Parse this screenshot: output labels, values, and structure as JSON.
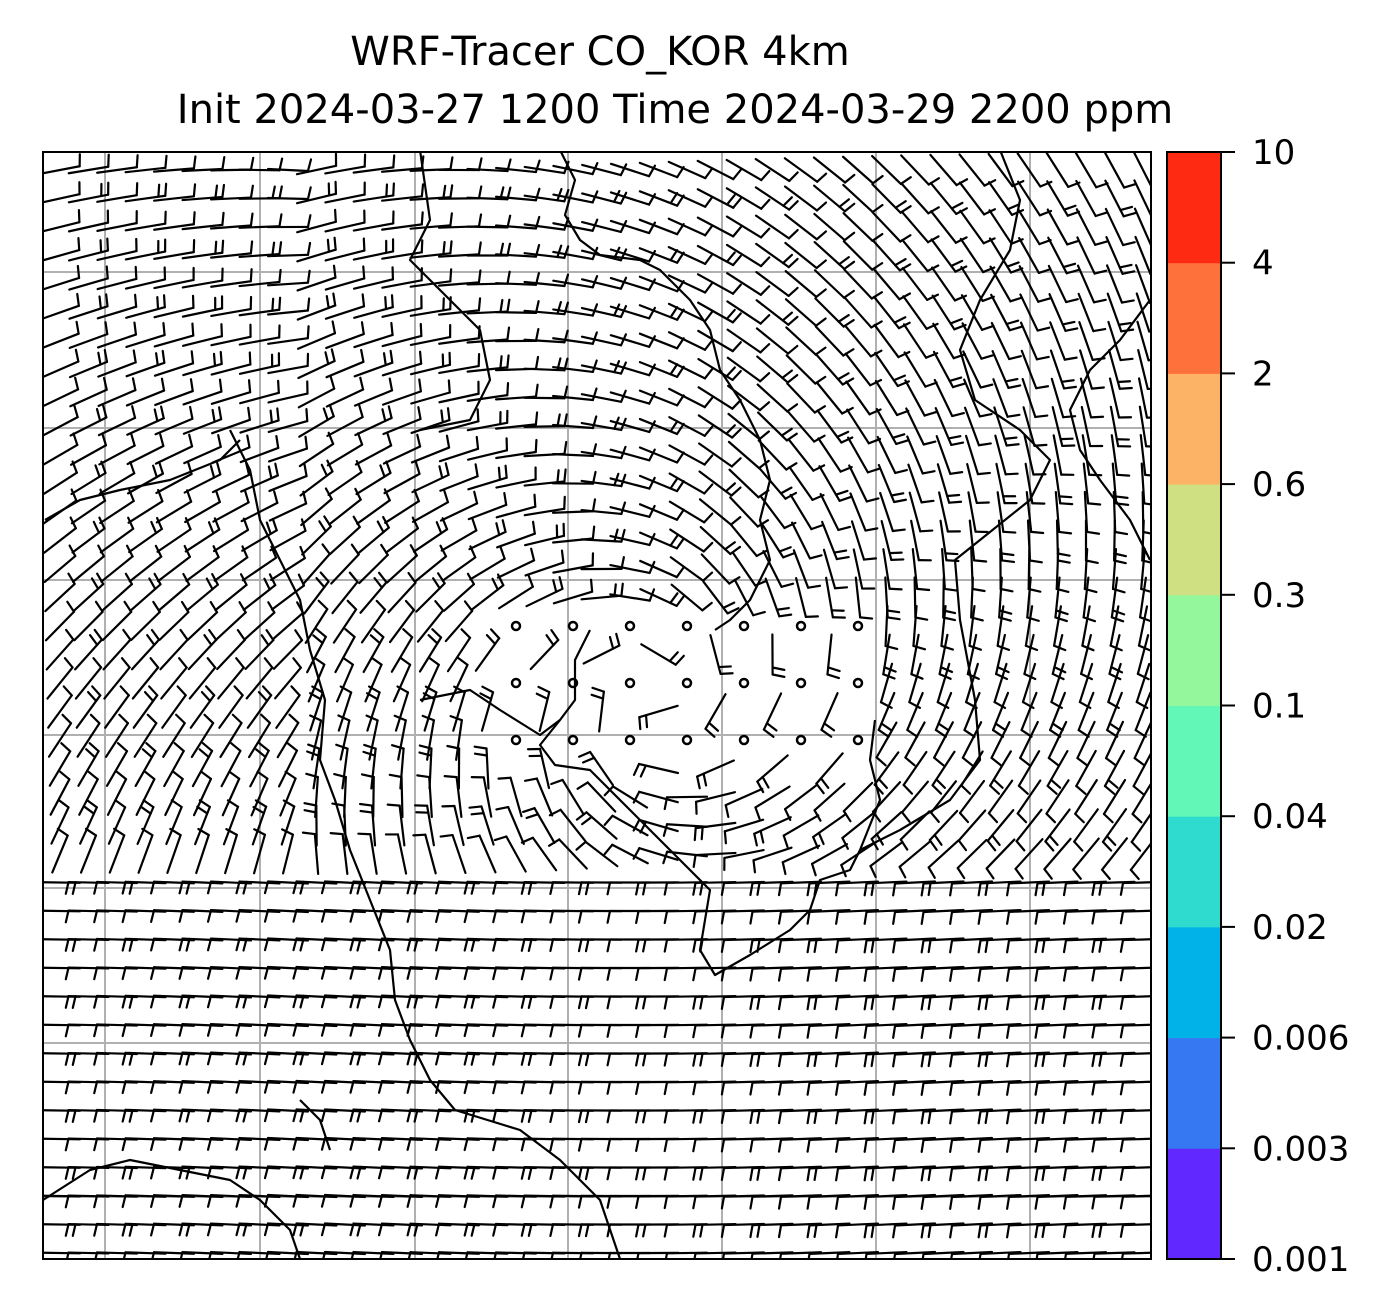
{
  "title": {
    "line1": "WRF-Tracer CO_KOR 4km",
    "line2": "Init 2024-03-27 1200 Time 2024-03-29 2200 ppm"
  },
  "colorbar": {
    "ticks": [
      "0.001",
      "0.003",
      "0.006",
      "0.02",
      "0.04",
      "0.1",
      "0.3",
      "0.6",
      "2",
      "4",
      "10"
    ],
    "colors": [
      "#6128ff",
      "#3578f2",
      "#00b2e8",
      "#2fdbcf",
      "#62f7b6",
      "#95f79c",
      "#cfe082",
      "#fdb366",
      "#ff713a",
      "#ff2a12"
    ]
  },
  "map": {
    "background": "#ffffff",
    "gridline_color": "#b0b0b0",
    "barb_color": "#000000",
    "coastline_color": "#000000"
  }
}
